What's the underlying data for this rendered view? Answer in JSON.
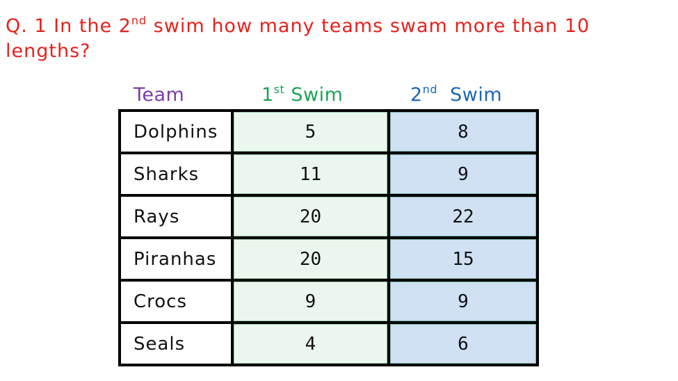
{
  "question": {
    "prefix": "Q. 1 In the 2",
    "sup": "nd",
    "suffix": " swim how many teams swam more than 10 lengths?"
  },
  "headers": {
    "team": "Team",
    "swim1_num": "1",
    "swim1_sup": "st",
    "swim1_word": " Swim",
    "swim2_num": "2",
    "swim2_sup": "nd",
    "swim2_word": "  Swim"
  },
  "colors": {
    "question": "#e8211b",
    "team_header": "#7b3ba7",
    "swim1_header": "#1ea257",
    "swim2_header": "#1c68b2",
    "swim1_fill": "#eaf7ee",
    "swim2_fill": "#cfe1f3"
  },
  "rows": [
    {
      "team": "Dolphins",
      "swim1": "5",
      "swim2": "8"
    },
    {
      "team": "Sharks",
      "swim1": "11",
      "swim2": "9"
    },
    {
      "team": "Rays",
      "swim1": "20",
      "swim2": "22"
    },
    {
      "team": "Piranhas",
      "swim1": "20",
      "swim2": "15"
    },
    {
      "team": "Crocs",
      "swim1": "9",
      "swim2": "9"
    },
    {
      "team": "Seals",
      "swim1": "4",
      "swim2": "6"
    }
  ]
}
